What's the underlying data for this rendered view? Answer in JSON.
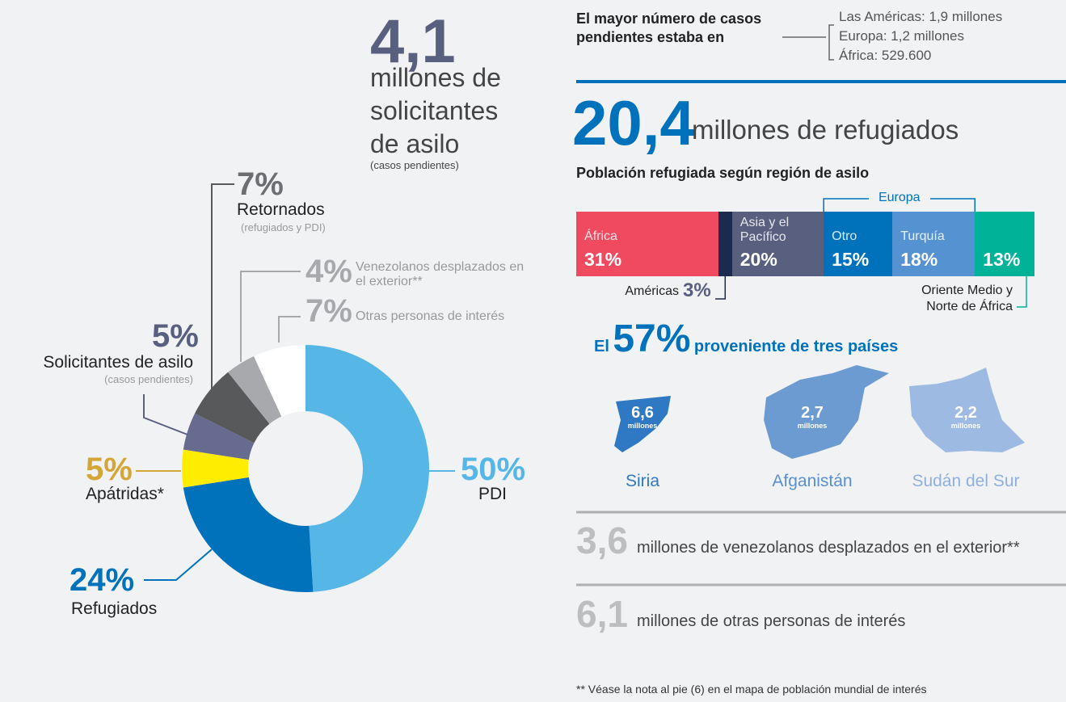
{
  "asylum": {
    "value": "4,1",
    "text": "millones de solicitantes de asilo",
    "note": "(casos pendientes)"
  },
  "pending": {
    "title": "El mayor número de casos pendientes estaba en",
    "items": [
      "Las Américas: 1,9 millones",
      "Europa: 1,2 millones",
      "África: 529.600"
    ]
  },
  "refugees": {
    "value": "20,4",
    "text": "millones de refugiados"
  },
  "origin": {
    "prefix": "El",
    "value": "57%",
    "text": "proveniente de tres países",
    "countries": [
      {
        "name": "Siria",
        "value": "6,6",
        "unit": "millones"
      },
      {
        "name": "Afganistán",
        "value": "2,7",
        "unit": "millones"
      },
      {
        "name": "Sudán del Sur",
        "value": "2,2",
        "unit": "millones"
      }
    ]
  },
  "venezuelans": {
    "value": "3,6",
    "text": "millones de venezolanos desplazados en el exterior**"
  },
  "others": {
    "value": "6,1",
    "text": "millones de otras personas de interés"
  },
  "footnote": "** Véase la nota al pie (6) en el mapa de población mundial de interés",
  "chart_data": [
    {
      "type": "pie",
      "categories": [
        "PDI",
        "Refugiados",
        "Apátridas*",
        "Solicitantes de asilo",
        "Retornados",
        "Venezolanos desplazados en el exterior**",
        "Otras personas de interés"
      ],
      "values": [
        50,
        24,
        5,
        5,
        7,
        4,
        7
      ],
      "value_labels": [
        "50%",
        "24%",
        "5%",
        "5%",
        "7%",
        "4%",
        "7%"
      ],
      "notes": [
        null,
        null,
        null,
        "(casos pendientes)",
        "(refugiados y PDI)",
        null,
        null
      ],
      "colors": [
        "#56b7e6",
        "#0072bc",
        "#ffed00",
        "#666b8f",
        "#58595b",
        "#a7a9ac",
        "#ffffff"
      ],
      "label_colors": [
        "#56b7e6",
        "#0072bc",
        "#d4a537",
        "#585f7f",
        "#6d6e71",
        "#a7a9ac",
        "#a7a9ac"
      ]
    },
    {
      "type": "bar",
      "stacked": true,
      "title": "Población refugiada según región de asilo",
      "categories": [
        "África",
        "Américas",
        "Asia y el Pacífico",
        "Otro",
        "Turquía",
        "Oriente Medio y Norte de África"
      ],
      "values": [
        31,
        3,
        20,
        15,
        18,
        13
      ],
      "value_labels": [
        "31%",
        "3%",
        "20%",
        "15%",
        "18%",
        "13%"
      ],
      "colors": [
        "#ef4a60",
        "#1b2a4e",
        "#585f7f",
        "#0072bc",
        "#5592d2",
        "#00b398"
      ],
      "annotation": "Europa"
    }
  ]
}
